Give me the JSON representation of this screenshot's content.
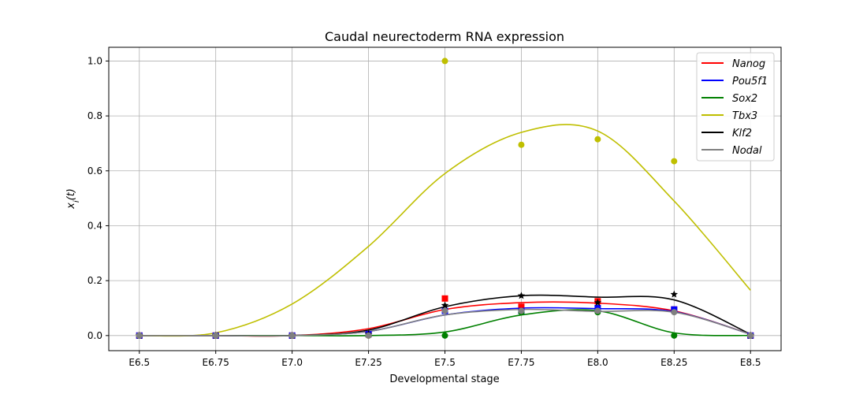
{
  "chart_data": {
    "type": "line",
    "title": "Caudal neurectoderm RNA expression",
    "xlabel": "Developmental stage",
    "ylabel": "x_i(t)",
    "categories": [
      "E6.5",
      "E6.75",
      "E7.0",
      "E7.25",
      "E7.5",
      "E7.75",
      "E8.0",
      "E8.25",
      "E8.5"
    ],
    "x": [
      6.5,
      6.75,
      7.0,
      7.25,
      7.5,
      7.75,
      8.0,
      8.25,
      8.5
    ],
    "xlim": [
      6.4,
      8.6
    ],
    "ylim": [
      -0.055,
      1.05
    ],
    "yticks": [
      0.0,
      0.2,
      0.4,
      0.6,
      0.8,
      1.0
    ],
    "ytick_labels": [
      "0.0",
      "0.2",
      "0.4",
      "0.6",
      "0.8",
      "1.0"
    ],
    "grid": true,
    "legend_position": "top-right",
    "series": [
      {
        "name": "Nanog",
        "color": "#ff0000",
        "marker": "square",
        "points": [
          0,
          0,
          0,
          0.005,
          0.135,
          0.105,
          0.125,
          0.095,
          0
        ],
        "curve": [
          0,
          0,
          0,
          0.025,
          0.095,
          0.12,
          0.118,
          0.09,
          0.005
        ]
      },
      {
        "name": "Pou5f1",
        "color": "#0000ff",
        "marker": "square",
        "points": [
          0,
          0,
          0,
          0.005,
          0.09,
          0.09,
          0.1,
          0.095,
          0
        ],
        "curve": [
          0,
          0,
          0,
          0.015,
          0.075,
          0.1,
          0.098,
          0.087,
          0.005
        ]
      },
      {
        "name": "Sox2",
        "color": "#008000",
        "marker": "circle",
        "points": [
          0,
          0,
          0,
          0,
          0,
          0.085,
          0.085,
          0,
          0
        ],
        "curve": [
          0,
          0,
          0,
          0,
          0.013,
          0.075,
          0.09,
          0.01,
          0.0
        ]
      },
      {
        "name": "Tbx3",
        "color": "#bfbf00",
        "marker": "circle",
        "points": [
          0,
          0,
          0,
          0,
          1.0,
          0.695,
          0.715,
          0.635,
          0
        ],
        "curve": [
          0,
          0.01,
          0.115,
          0.325,
          0.59,
          0.74,
          0.745,
          0.49,
          0.165
        ]
      },
      {
        "name": "Klf2",
        "color": "#000000",
        "marker": "star",
        "points": [
          0,
          0,
          0,
          0.005,
          0.11,
          0.145,
          0.12,
          0.15,
          0
        ],
        "curve": [
          0,
          0,
          0,
          0.02,
          0.105,
          0.145,
          0.14,
          0.13,
          0.005
        ]
      },
      {
        "name": "Nodal",
        "color": "#808080",
        "marker": "circle",
        "points": [
          0,
          0,
          0,
          0,
          0.09,
          0.09,
          0.09,
          0.085,
          0
        ],
        "curve": [
          0,
          0,
          0,
          0.015,
          0.075,
          0.095,
          0.088,
          0.085,
          0.005
        ]
      }
    ]
  }
}
